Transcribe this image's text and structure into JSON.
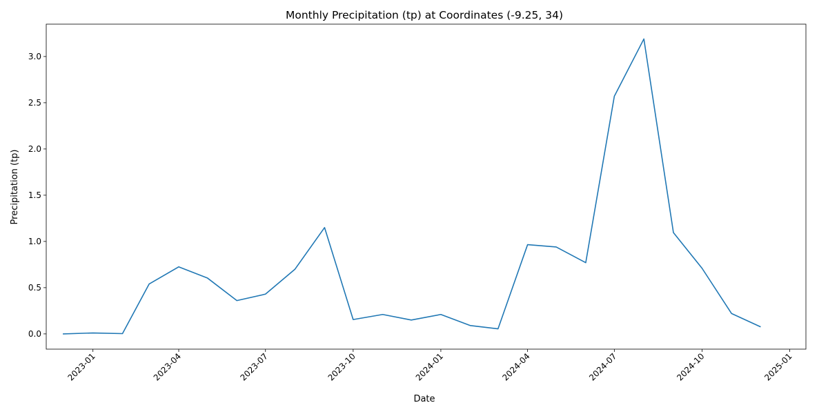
{
  "chart_data": {
    "type": "line",
    "title": "Monthly Precipitation (tp) at Coordinates (-9.25, 34)",
    "xlabel": "Date",
    "ylabel": "Precipitation (tp)",
    "ylim": [
      -0.165,
      3.35
    ],
    "xlim": [
      "2022-11-13",
      "2025-01-18"
    ],
    "grid": false,
    "legend": "none",
    "x_ticks": [
      "2023-01",
      "2023-04",
      "2023-07",
      "2023-10",
      "2024-01",
      "2024-04",
      "2024-07",
      "2024-10",
      "2025-01"
    ],
    "y_ticks": [
      "0.0",
      "0.5",
      "1.0",
      "1.5",
      "2.0",
      "2.5",
      "3.0"
    ],
    "series": [
      {
        "color": "#1f77b4",
        "x": [
          "2022-12-01",
          "2023-01-01",
          "2023-02-01",
          "2023-03-01",
          "2023-04-01",
          "2023-05-01",
          "2023-06-01",
          "2023-07-01",
          "2023-08-01",
          "2023-09-01",
          "2023-10-01",
          "2023-11-01",
          "2023-12-01",
          "2024-01-01",
          "2024-02-01",
          "2024-03-01",
          "2024-04-01",
          "2024-05-01",
          "2024-06-01",
          "2024-07-01",
          "2024-08-01",
          "2024-09-01",
          "2024-10-01",
          "2024-11-01",
          "2024-12-01"
        ],
        "values": [
          0.0,
          0.01,
          0.003,
          0.54,
          0.725,
          0.605,
          0.36,
          0.43,
          0.7,
          1.15,
          0.155,
          0.21,
          0.15,
          0.21,
          0.09,
          0.055,
          0.965,
          0.94,
          0.77,
          2.57,
          3.19,
          1.095,
          0.71,
          0.22,
          0.078
        ]
      }
    ]
  }
}
